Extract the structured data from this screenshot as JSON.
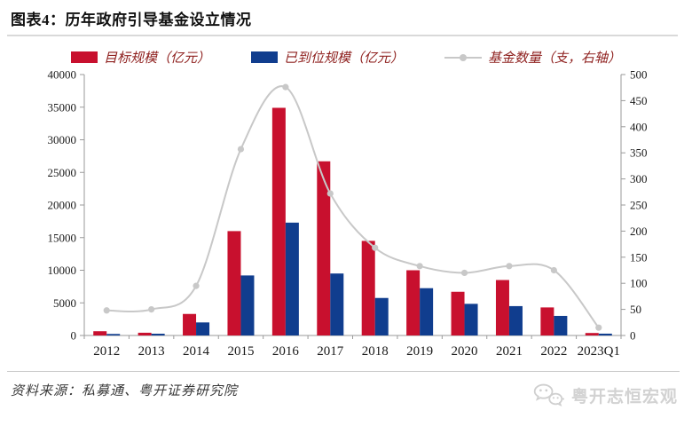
{
  "header": {
    "title": "图表4：历年政府引导基金设立情况"
  },
  "legend": [
    {
      "label": "目标规模（亿元）",
      "color": "#c8102e",
      "type": "bar"
    },
    {
      "label": "已到位规模（亿元）",
      "color": "#103d8e",
      "type": "bar"
    },
    {
      "label": "基金数量（支，右轴）",
      "color": "#c8c8c8",
      "type": "line"
    }
  ],
  "chart_data": {
    "type": "bar",
    "categories": [
      "2012",
      "2013",
      "2014",
      "2015",
      "2016",
      "2017",
      "2018",
      "2019",
      "2020",
      "2021",
      "2022",
      "2023Q1"
    ],
    "series": [
      {
        "name": "目标规模（亿元）",
        "type": "bar",
        "axis": "left",
        "color": "#c8102e",
        "values": [
          650,
          420,
          3300,
          16000,
          34900,
          26700,
          14500,
          10000,
          6700,
          8500,
          4300,
          380
        ]
      },
      {
        "name": "已到位规模（亿元）",
        "type": "bar",
        "axis": "left",
        "color": "#103d8e",
        "values": [
          230,
          270,
          2000,
          9200,
          17300,
          9500,
          5750,
          7250,
          4850,
          4500,
          3000,
          280
        ]
      },
      {
        "name": "基金数量（支，右轴）",
        "type": "line",
        "axis": "right",
        "color": "#c8c8c8",
        "values": [
          48,
          50,
          95,
          357,
          476,
          272,
          168,
          133,
          120,
          133,
          125,
          15
        ]
      }
    ],
    "left_axis": {
      "min": 0,
      "max": 40000,
      "step": 5000
    },
    "right_axis": {
      "min": 0,
      "max": 500,
      "step": 50
    },
    "grid": false,
    "legend_position": "top",
    "axis_color": "#9a9a9a",
    "label_color": "#1a1a1a"
  },
  "footer": {
    "source": "资料来源：私募通、粤开证券研究院",
    "brand": "粤开志恒宏观"
  }
}
